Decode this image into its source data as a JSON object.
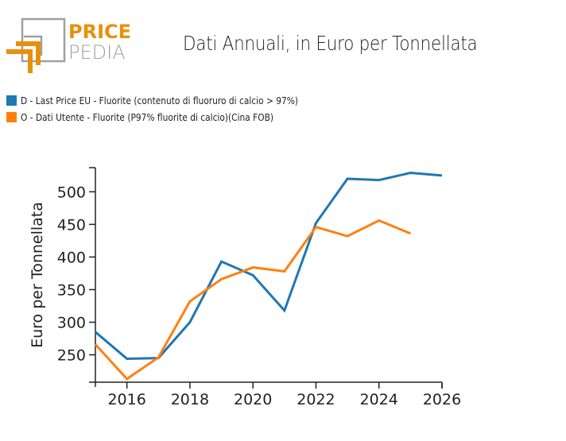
{
  "header": {
    "logo_text_top": "PRICE",
    "logo_text_bottom": "PEDIA",
    "title": "Dati Annuali, in Euro per Tonnellata"
  },
  "colors": {
    "brand_orange": "#e8900c",
    "brand_gray": "#a0a0a0",
    "series_blue": "#1f77b4",
    "series_orange": "#ff7f0e"
  },
  "legend": [
    {
      "label": "D - Last Price EU - Fluorite (contenuto di fluoruro di calcio > 97%)",
      "color": "#1f77b4"
    },
    {
      "label": "O - Dati Utente - Fluorite (P97% fluorite di calcio)(Cina FOB)",
      "color": "#ff7f0e"
    }
  ],
  "chart_data": {
    "type": "line",
    "title": "Dati Annuali, in Euro per Tonnellata",
    "xlabel": "",
    "ylabel": "Euro per Tonnellata",
    "xlim": [
      2015,
      2026
    ],
    "ylim": [
      208,
      537
    ],
    "xticks": [
      2016,
      2018,
      2020,
      2022,
      2024,
      2026
    ],
    "yticks": [
      250,
      300,
      350,
      400,
      450,
      500
    ],
    "grid": false,
    "legend_position": "top-left",
    "series": [
      {
        "name": "D - Last Price EU - Fluorite (contenuto di fluoruro di calcio > 97%)",
        "color": "#1f77b4",
        "x": [
          2015,
          2016,
          2017,
          2018,
          2019,
          2020,
          2021,
          2022,
          2023,
          2024,
          2025,
          2026
        ],
        "values": [
          285,
          244,
          245,
          300,
          393,
          372,
          318,
          452,
          520,
          518,
          529,
          525
        ]
      },
      {
        "name": "O - Dati Utente - Fluorite (P97% fluorite di calcio)(Cina FOB)",
        "color": "#ff7f0e",
        "x": [
          2015,
          2016,
          2017,
          2018,
          2019,
          2020,
          2021,
          2022,
          2023,
          2024,
          2025
        ],
        "values": [
          266,
          213,
          246,
          332,
          366,
          384,
          378,
          446,
          432,
          456,
          436
        ]
      }
    ]
  }
}
